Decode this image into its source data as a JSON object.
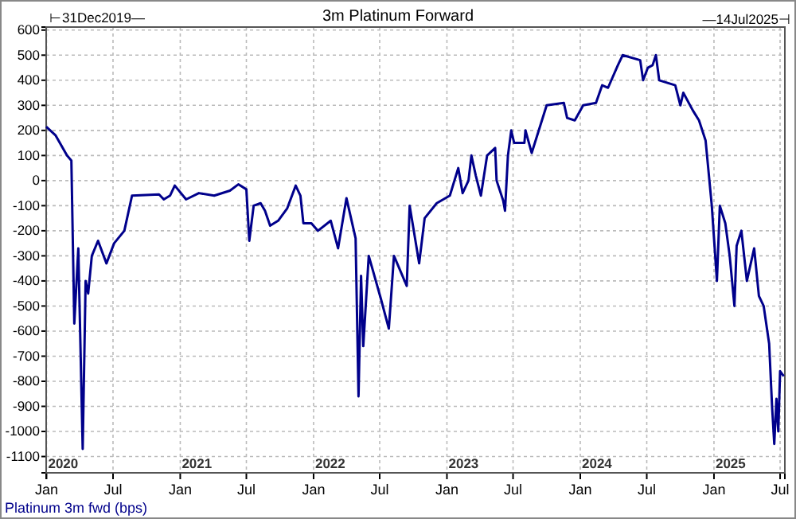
{
  "chart_data": {
    "type": "line",
    "title": "3m Platinum Forward",
    "annotations": [
      "⊢31Dec2019—",
      "—14Jul2025⊣",
      "2020",
      "2021",
      "2022",
      "2023",
      "2024",
      "2025"
    ],
    "x": [
      "2019-12-31",
      "2020-01-26",
      "2020-02-26",
      "2020-03-09",
      "2020-03-17",
      "2020-03-28",
      "2020-04-09",
      "2020-04-17",
      "2020-04-24",
      "2020-05-04",
      "2020-05-21",
      "2020-06-13",
      "2020-07-04",
      "2020-08-01",
      "2020-08-22",
      "2020-11-04",
      "2020-11-17",
      "2020-12-04",
      "2020-12-17",
      "2021-01-17",
      "2021-02-21",
      "2021-04-04",
      "2021-05-17",
      "2021-06-09",
      "2021-07-01",
      "2021-07-09",
      "2021-07-21",
      "2021-08-09",
      "2021-08-21",
      "2021-09-04",
      "2021-09-26",
      "2021-10-21",
      "2021-11-13",
      "2021-11-26",
      "2021-12-04",
      "2021-12-26",
      "2022-01-13",
      "2022-02-17",
      "2022-03-09",
      "2022-04-01",
      "2022-04-26",
      "2022-05-04",
      "2022-05-11",
      "2022-05-17",
      "2022-06-01",
      "2022-07-04",
      "2022-07-26",
      "2022-08-09",
      "2022-09-13",
      "2022-09-21",
      "2022-10-17",
      "2022-11-01",
      "2022-12-04",
      "2023-01-09",
      "2023-02-01",
      "2023-02-13",
      "2023-03-01",
      "2023-03-09",
      "2023-03-21",
      "2023-04-04",
      "2023-04-21",
      "2023-05-13",
      "2023-05-17",
      "2023-06-04",
      "2023-06-09",
      "2023-06-17",
      "2023-06-26",
      "2023-07-04",
      "2023-08-01",
      "2023-08-04",
      "2023-08-21",
      "2023-10-01",
      "2023-11-17",
      "2023-11-26",
      "2023-12-17",
      "2024-01-09",
      "2024-02-13",
      "2024-03-01",
      "2024-03-17",
      "2024-04-13",
      "2024-04-26",
      "2024-06-13",
      "2024-06-21",
      "2024-07-04",
      "2024-07-17",
      "2024-07-26",
      "2024-08-04",
      "2024-09-17",
      "2024-10-01",
      "2024-10-09",
      "2024-11-04",
      "2024-11-21",
      "2024-12-09",
      "2024-12-26",
      "2025-01-09",
      "2025-01-17",
      "2025-02-01",
      "2025-02-13",
      "2025-02-26",
      "2025-03-04",
      "2025-03-17",
      "2025-04-01",
      "2025-04-21",
      "2025-05-04",
      "2025-05-17",
      "2025-06-01",
      "2025-06-09",
      "2025-06-15",
      "2025-06-21",
      "2025-06-26",
      "2025-07-01",
      "2025-07-11"
    ],
    "series": [
      {
        "name": "Platinum 3m fwd (bps)",
        "color": "#00008b",
        "values": [
          215,
          180,
          100,
          80,
          -570,
          -270,
          -1070,
          -400,
          -450,
          -300,
          -240,
          -330,
          -250,
          -200,
          -60,
          -55,
          -75,
          -60,
          -20,
          -75,
          -50,
          -60,
          -40,
          -15,
          -35,
          -240,
          -100,
          -90,
          -120,
          -180,
          -160,
          -110,
          -20,
          -60,
          -170,
          -170,
          -200,
          -160,
          -270,
          -70,
          -230,
          -860,
          -380,
          -660,
          -300,
          -470,
          -590,
          -300,
          -420,
          -100,
          -330,
          -150,
          -90,
          -60,
          50,
          -50,
          0,
          100,
          20,
          -60,
          100,
          130,
          0,
          -80,
          -120,
          100,
          200,
          150,
          150,
          200,
          110,
          300,
          310,
          250,
          240,
          300,
          310,
          380,
          370,
          460,
          500,
          480,
          400,
          450,
          460,
          500,
          400,
          380,
          300,
          350,
          280,
          240,
          160,
          -100,
          -400,
          -100,
          -170,
          -300,
          -500,
          -260,
          -200,
          -400,
          -270,
          -460,
          -500,
          -650,
          -900,
          -1050,
          -870,
          -1000,
          -760,
          -780
        ]
      }
    ],
    "xlim": [
      "2019-12-31",
      "2025-07-14"
    ],
    "xticks": [
      {
        "value": "2020-01-01",
        "label": "Jan"
      },
      {
        "value": "2020-07-01",
        "label": "Jul"
      },
      {
        "value": "2021-01-01",
        "label": "Jan"
      },
      {
        "value": "2021-07-01",
        "label": "Jul"
      },
      {
        "value": "2022-01-01",
        "label": "Jan"
      },
      {
        "value": "2022-07-01",
        "label": "Jul"
      },
      {
        "value": "2023-01-01",
        "label": "Jan"
      },
      {
        "value": "2023-07-01",
        "label": "Jul"
      },
      {
        "value": "2024-01-01",
        "label": "Jan"
      },
      {
        "value": "2024-07-01",
        "label": "Jul"
      },
      {
        "value": "2025-01-01",
        "label": "Jan"
      },
      {
        "value": "2025-07-01",
        "label": "Jul"
      }
    ],
    "ylim": [
      -1165,
      612
    ],
    "yticks": [
      600,
      500,
      400,
      300,
      200,
      100,
      0,
      -100,
      -200,
      -300,
      -400,
      -500,
      -600,
      -700,
      -800,
      -900,
      -1000,
      -1100
    ],
    "grid": true,
    "legend": "bottom left",
    "line_style": "solid",
    "marker": "none"
  }
}
